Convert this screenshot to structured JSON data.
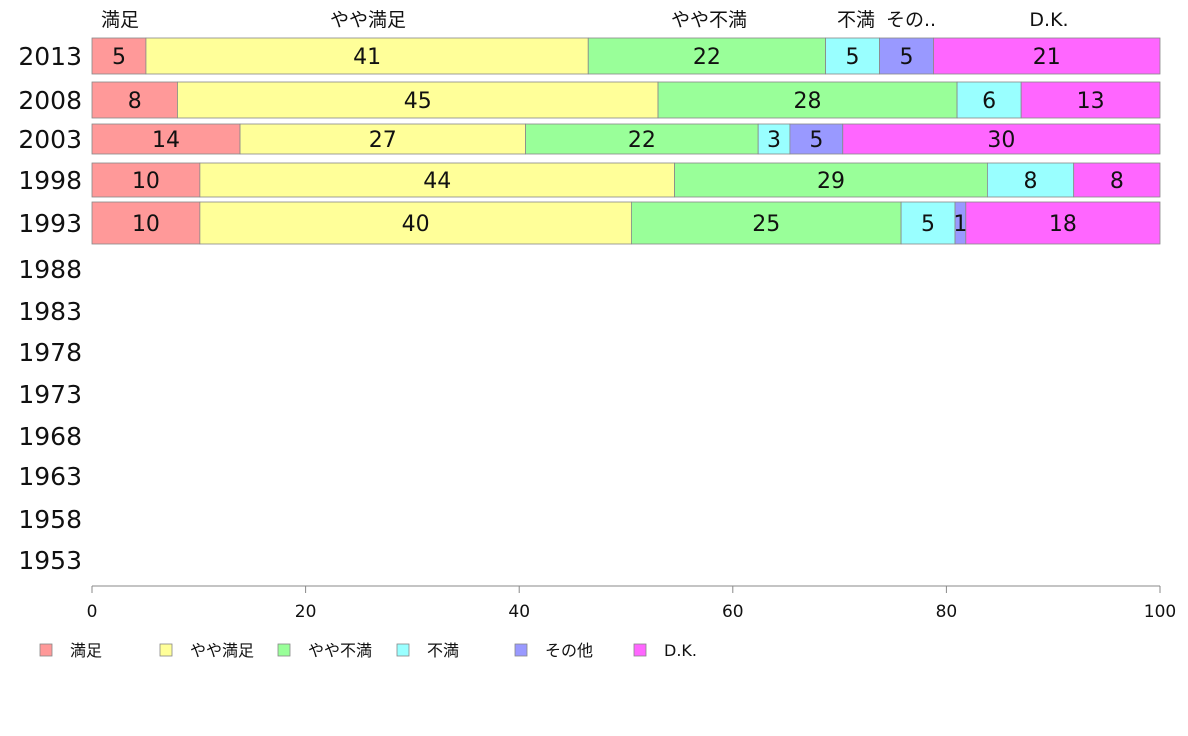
{
  "chart_data": {
    "type": "bar",
    "orientation": "horizontal",
    "stacked": true,
    "categories": [
      "2013",
      "2008",
      "2003",
      "1998",
      "1993",
      "1988",
      "1983",
      "1978",
      "1973",
      "1968",
      "1963",
      "1958",
      "1953"
    ],
    "series": [
      {
        "name": "満足",
        "values": [
          5,
          8,
          14,
          10,
          10,
          null,
          null,
          null,
          null,
          null,
          null,
          null,
          null
        ],
        "color": "#ff9999"
      },
      {
        "name": "やや満足",
        "values": [
          41,
          45,
          27,
          44,
          40,
          null,
          null,
          null,
          null,
          null,
          null,
          null,
          null
        ],
        "color": "#ffff99"
      },
      {
        "name": "やや不満",
        "values": [
          22,
          28,
          22,
          29,
          25,
          null,
          null,
          null,
          null,
          null,
          null,
          null,
          null
        ],
        "color": "#99ff99"
      },
      {
        "name": "不満",
        "values": [
          5,
          6,
          3,
          8,
          5,
          null,
          null,
          null,
          null,
          null,
          null,
          null,
          null
        ],
        "color": "#99ffff"
      },
      {
        "name": "その他",
        "values": [
          5,
          0,
          5,
          0,
          1,
          null,
          null,
          null,
          null,
          null,
          null,
          null,
          null
        ],
        "color": "#9999ff"
      },
      {
        "name": "D.K.",
        "values": [
          21,
          13,
          30,
          8,
          18,
          null,
          null,
          null,
          null,
          null,
          null,
          null,
          null
        ],
        "color": "#ff66ff"
      }
    ],
    "top_labels": [
      "満足",
      "やや満足",
      "やや不満",
      "不満",
      "その..",
      "D.K."
    ],
    "xlim": [
      0,
      100
    ],
    "xticks": [
      0,
      20,
      40,
      60,
      80,
      100
    ],
    "legend_position": "bottom",
    "grid": false
  }
}
